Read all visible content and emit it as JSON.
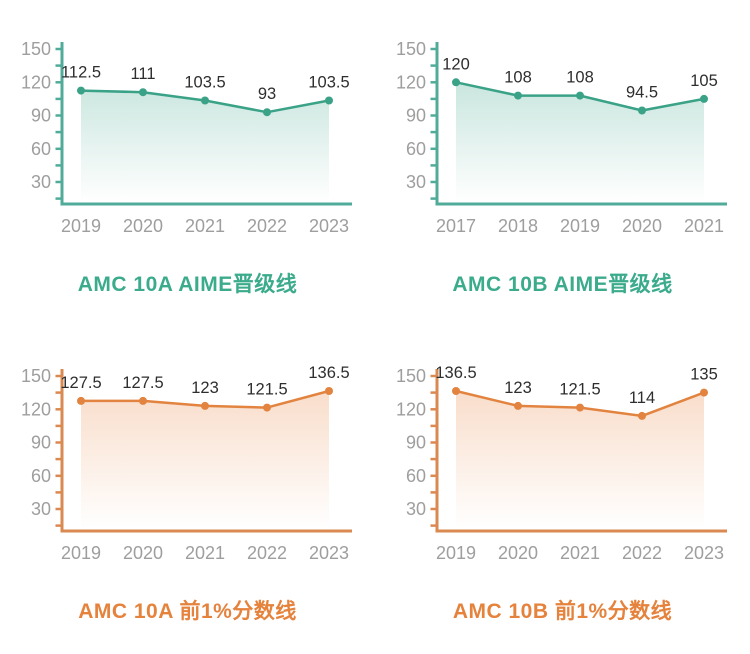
{
  "page": {
    "background": "#FFFFFF",
    "text_gray": "#9E9E9E",
    "value_label_color": "#2E2E2E"
  },
  "chart_data": [
    {
      "id": "amc10a-aime-cutoff",
      "type": "area",
      "title": "AMC 10A AIME晋级线",
      "categories": [
        "2019",
        "2020",
        "2021",
        "2022",
        "2023"
      ],
      "values": [
        112.5,
        111,
        103.5,
        93,
        103.5
      ],
      "value_labels": [
        "112.5",
        "111",
        "103.5",
        "93",
        "103.5"
      ],
      "ylim": [
        0,
        150
      ],
      "yticks": [
        30,
        60,
        90,
        120,
        150
      ],
      "minor_tick_step": 15,
      "grid": false,
      "legend": false,
      "colors": {
        "line": "#3AA287",
        "marker": "#3AA287",
        "axis": "#50AB99",
        "fill": "#3AA287",
        "fill_top_opacity": 0.3,
        "fill_bottom_opacity": 0,
        "title": "#3BAB8C",
        "axis_label": "#9E9E9E",
        "value_label": "#2E2E2E"
      }
    },
    {
      "id": "amc10b-aime-cutoff",
      "type": "area",
      "title": "AMC 10B AIME晋级线",
      "categories": [
        "2017",
        "2018",
        "2019",
        "2020",
        "2021"
      ],
      "values": [
        120,
        108,
        108,
        94.5,
        105
      ],
      "value_labels": [
        "120",
        "108",
        "108",
        "94.5",
        "105"
      ],
      "ylim": [
        0,
        150
      ],
      "yticks": [
        30,
        60,
        90,
        120,
        150
      ],
      "minor_tick_step": 15,
      "grid": false,
      "legend": false,
      "colors": {
        "line": "#3AA287",
        "marker": "#3AA287",
        "axis": "#50AB99",
        "fill": "#3AA287",
        "fill_top_opacity": 0.3,
        "fill_bottom_opacity": 0,
        "title": "#3BAB8C",
        "axis_label": "#9E9E9E",
        "value_label": "#2E2E2E"
      }
    },
    {
      "id": "amc10a-top1pct-cutoff",
      "type": "area",
      "title": "AMC 10A 前1%分数线",
      "categories": [
        "2019",
        "2020",
        "2021",
        "2022",
        "2023"
      ],
      "values": [
        127.5,
        127.5,
        123,
        121.5,
        136.5
      ],
      "value_labels": [
        "127.5",
        "127.5",
        "123",
        "121.5",
        "136.5"
      ],
      "ylim": [
        0,
        150
      ],
      "yticks": [
        30,
        60,
        90,
        120,
        150
      ],
      "minor_tick_step": 15,
      "grid": false,
      "legend": false,
      "colors": {
        "line": "#E28440",
        "marker": "#E28440",
        "axis": "#DA8950",
        "fill": "#E8833F",
        "fill_top_opacity": 0.26,
        "fill_bottom_opacity": 0,
        "title": "#E5823C",
        "axis_label": "#9E9E9E",
        "value_label": "#2E2E2E"
      }
    },
    {
      "id": "amc10b-top1pct-cutoff",
      "type": "area",
      "title": "AMC 10B 前1%分数线",
      "categories": [
        "2019",
        "2020",
        "2021",
        "2022",
        "2023"
      ],
      "values": [
        136.5,
        123,
        121.5,
        114,
        135
      ],
      "value_labels": [
        "136.5",
        "123",
        "121.5",
        "114",
        "135"
      ],
      "ylim": [
        0,
        150
      ],
      "yticks": [
        30,
        60,
        90,
        120,
        150
      ],
      "minor_tick_step": 15,
      "grid": false,
      "legend": false,
      "colors": {
        "line": "#E28440",
        "marker": "#E28440",
        "axis": "#DA8950",
        "fill": "#E8833F",
        "fill_top_opacity": 0.26,
        "fill_bottom_opacity": 0,
        "title": "#E5823C",
        "axis_label": "#9E9E9E",
        "value_label": "#2E2E2E"
      }
    }
  ]
}
